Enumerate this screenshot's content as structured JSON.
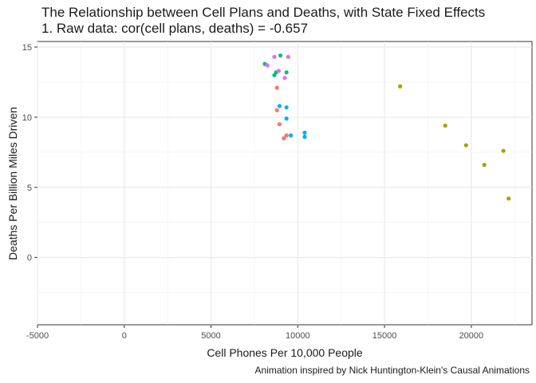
{
  "header": {
    "title_line1": "The Relationship between Cell Plans and Deaths, with State Fixed Effects",
    "title_line2": "1. Raw data: cor(cell plans, deaths) = -0.657"
  },
  "caption": "Animation inspired by Nick Huntington-Klein's Causal Animations",
  "chart_data": {
    "type": "scatter",
    "title": "The Relationship between Cell Plans and Deaths, with State Fixed Effects",
    "subtitle": "1. Raw data: cor(cell plans, deaths) = -0.657",
    "xlabel": "Cell Phones Per 10,000 People",
    "ylabel": "Deaths Per Billion Miles Driven",
    "xlim": [
      -5000,
      23500
    ],
    "ylim": [
      -4.8,
      15.4
    ],
    "x_ticks": [
      -5000,
      0,
      5000,
      10000,
      15000,
      20000
    ],
    "x_tick_labels": [
      "-5000",
      "0",
      "5000",
      "10000",
      "15000",
      "20000"
    ],
    "y_ticks": [
      0,
      5,
      10,
      15
    ],
    "y_tick_labels": [
      "0",
      "5",
      "10",
      "15"
    ],
    "grid": true,
    "legend": "none",
    "colors": [
      "#F8766D",
      "#A3A500",
      "#00BF7D",
      "#00B0F6",
      "#E76BF3"
    ],
    "series": [
      {
        "color": "#F8766D",
        "points": [
          [
            8800,
            12.1
          ],
          [
            8800,
            10.5
          ],
          [
            8950,
            9.5
          ],
          [
            9200,
            8.5
          ],
          [
            9350,
            8.7
          ]
        ]
      },
      {
        "color": "#A3A500",
        "points": [
          [
            15900,
            12.2
          ],
          [
            18500,
            9.4
          ],
          [
            19700,
            8.0
          ],
          [
            20750,
            6.6
          ],
          [
            21850,
            7.6
          ],
          [
            22150,
            4.2
          ]
        ]
      },
      {
        "color": "#00BF7D",
        "points": [
          [
            8100,
            13.8
          ],
          [
            8650,
            13.0
          ],
          [
            8750,
            13.2
          ],
          [
            9000,
            14.4
          ],
          [
            9350,
            13.2
          ]
        ]
      },
      {
        "color": "#00B0F6",
        "points": [
          [
            8950,
            10.8
          ],
          [
            9350,
            10.7
          ],
          [
            9350,
            9.9
          ],
          [
            9600,
            8.7
          ],
          [
            10400,
            8.9
          ],
          [
            10400,
            8.6
          ]
        ]
      },
      {
        "color": "#E76BF3",
        "points": [
          [
            8250,
            13.7
          ],
          [
            8650,
            14.3
          ],
          [
            8900,
            13.3
          ],
          [
            9250,
            12.8
          ],
          [
            9450,
            14.3
          ]
        ]
      }
    ]
  }
}
